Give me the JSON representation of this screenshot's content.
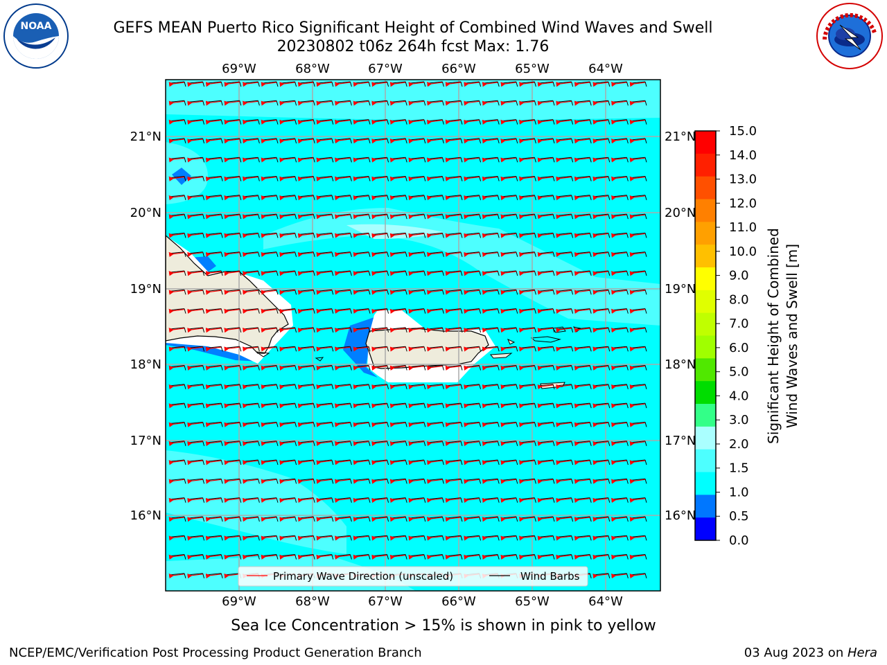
{
  "title": {
    "line1": "GEFS MEAN Puerto Rico Significant Height of Combined Wind Waves and Swell",
    "line2": "20230802 t06z 264h fcst   Max: 1.76"
  },
  "logos": {
    "left": {
      "icon": "noaa-logo",
      "text": "NOAA"
    },
    "right": {
      "icon": "nws-logo",
      "text": "NATIONAL WEATHER SERVICE"
    }
  },
  "map": {
    "lon_labels": [
      "69°W",
      "68°W",
      "67°W",
      "66°W",
      "65°W",
      "64°W"
    ],
    "lat_labels": [
      "21°N",
      "20°N",
      "19°N",
      "18°N",
      "17°N",
      "16°N"
    ],
    "legend": {
      "wave_direction": "Primary Wave Direction (unscaled)",
      "wind_barbs": "Wind Barbs"
    },
    "colors": {
      "ocean_main": "#00ffff",
      "ocean_light": "#4dffff",
      "ocean_dark": "#007fff",
      "land": "#eeecdc",
      "arrow": "#ff0000"
    }
  },
  "colorbar": {
    "label_line1": "Significant Height of Combined",
    "label_line2": "Wind Waves and Swell [m]",
    "ticks": [
      "15.0",
      "14.0",
      "13.0",
      "12.0",
      "11.0",
      "10.0",
      "9.0",
      "8.0",
      "7.0",
      "6.0",
      "5.0",
      "4.0",
      "3.0",
      "2.0",
      "1.5",
      "1.0",
      "0.5",
      "0.0"
    ],
    "colors": [
      "#ff0000",
      "#ff2000",
      "#ff5000",
      "#ff8000",
      "#ffa000",
      "#ffc000",
      "#ffff00",
      "#e0ff00",
      "#c0ff00",
      "#a0ff00",
      "#50e800",
      "#00dd00",
      "#33ff88",
      "#aaffff",
      "#4dffff",
      "#00ffff",
      "#0077ff",
      "#0000ff"
    ]
  },
  "ice_note": "Sea Ice Concentration > 15% is shown in pink to yellow",
  "footer": {
    "left": "NCEP/EMC/Verification Post Processing Product Generation Branch",
    "right_prefix": "03 Aug 2023 on ",
    "right_host": "Hera"
  }
}
